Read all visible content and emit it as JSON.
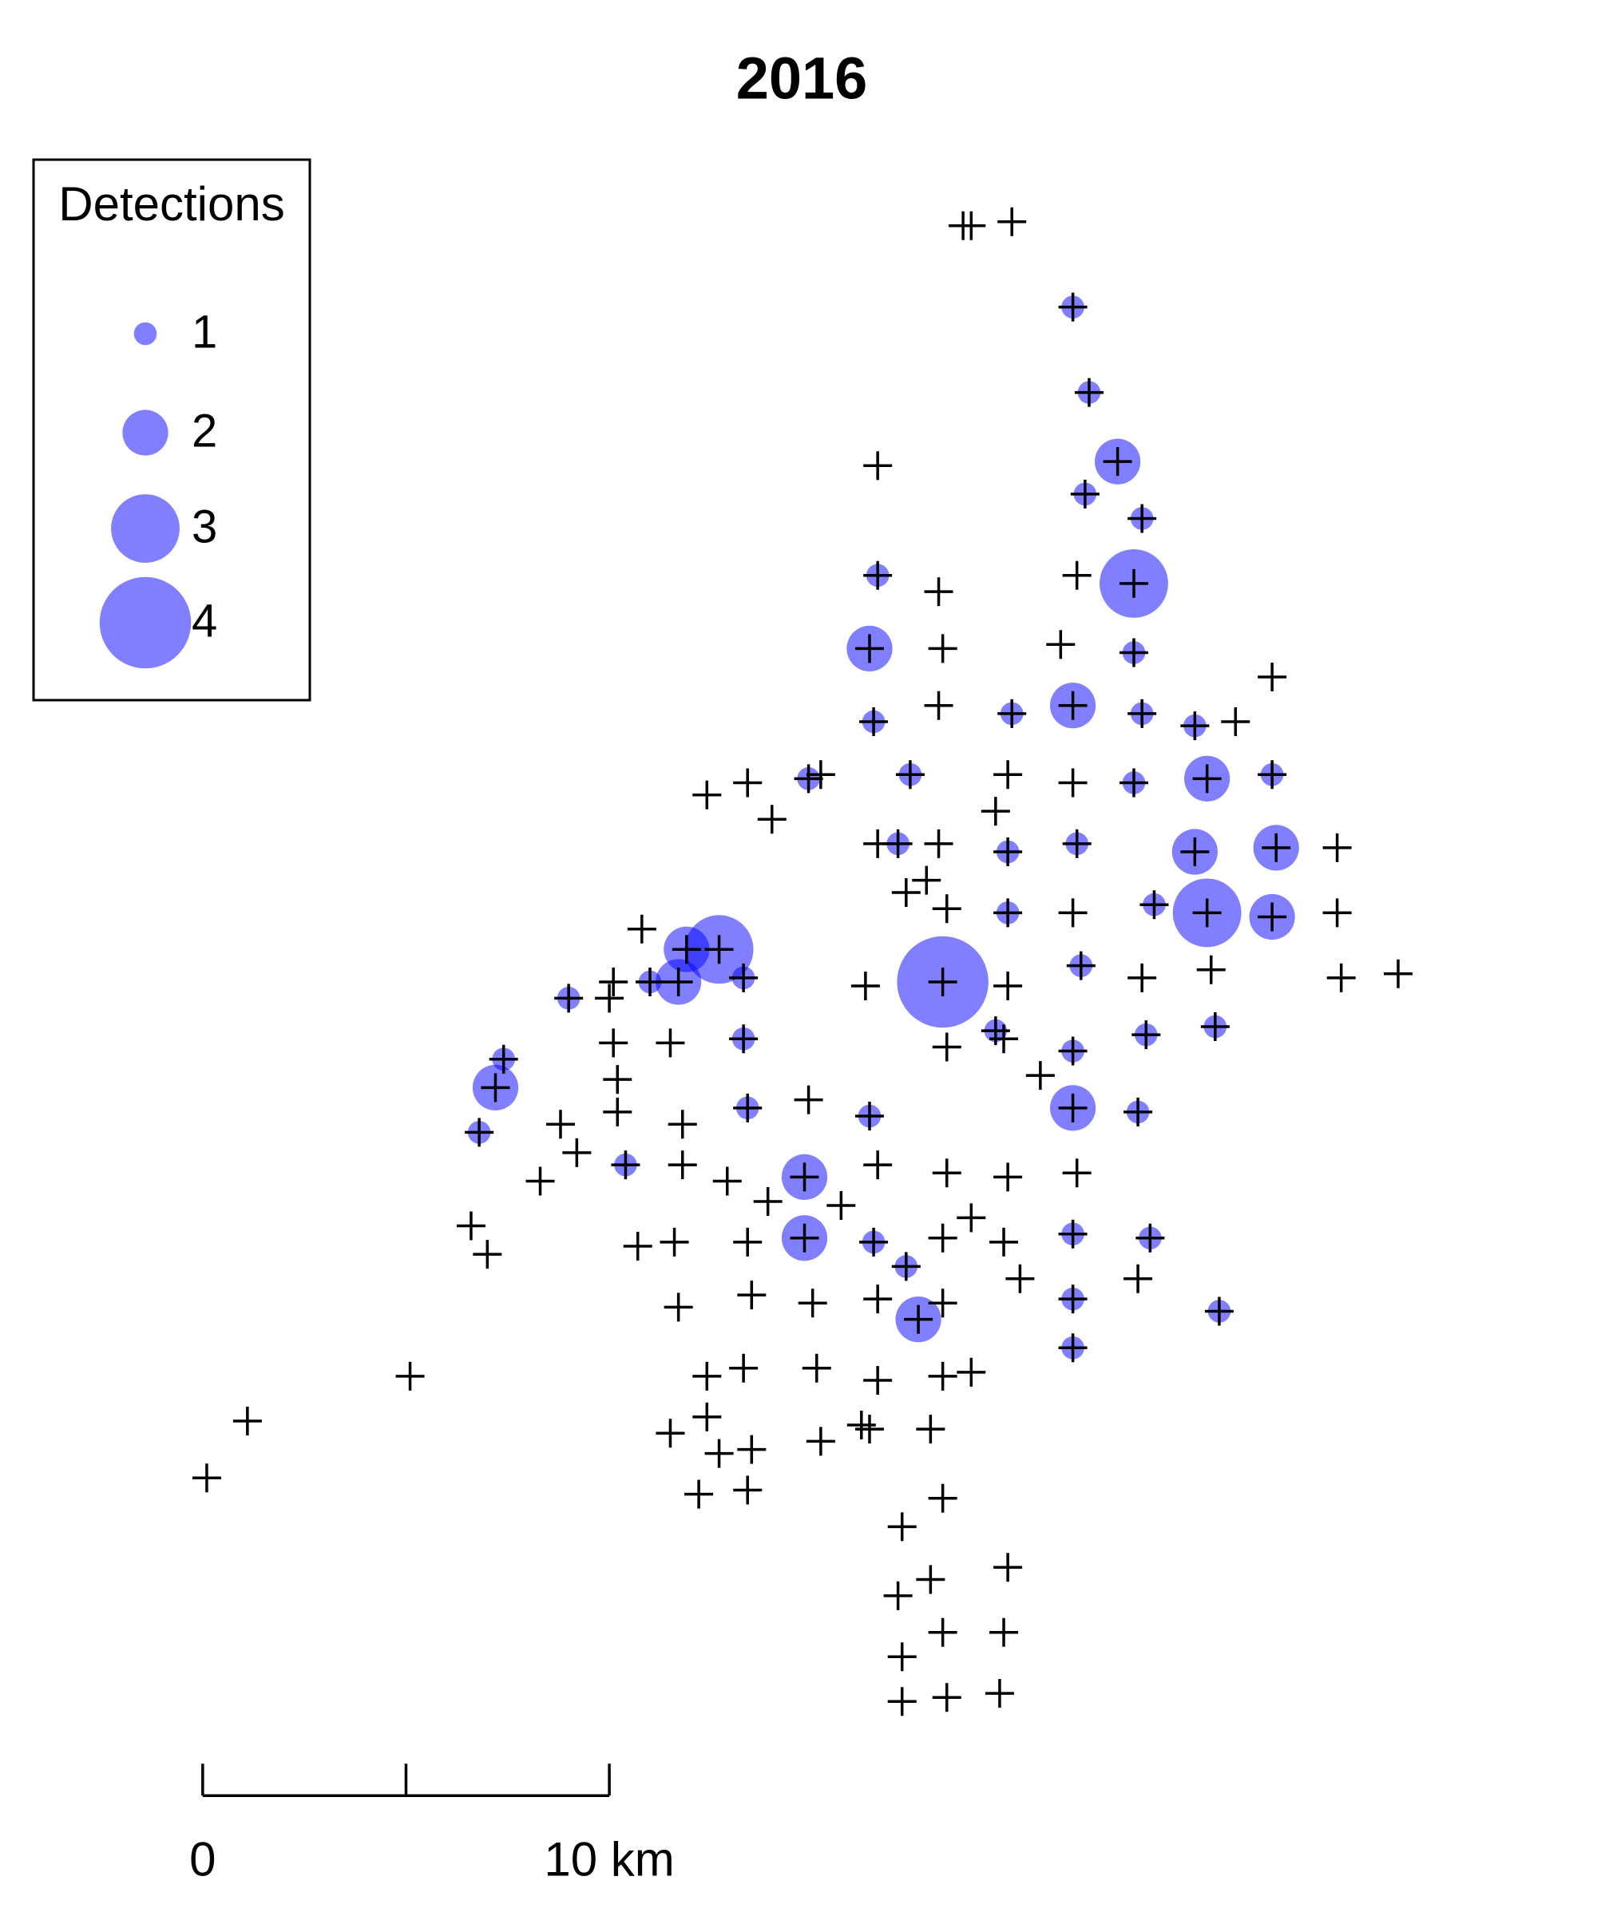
{
  "chart_data": {
    "type": "bubble",
    "title": "2016",
    "x": [
      18.9,
      18.7,
      19.9,
      21.4,
      21.8,
      16.6,
      22.5,
      21.7,
      23.1,
      16.6,
      21.5,
      22.9,
      18.1,
      16.4,
      18.2,
      21.1,
      22.9,
      26.3,
      18.1,
      19.9,
      21.4,
      23.1,
      24.4,
      25.4,
      16.5,
      14.9,
      15.2,
      12.4,
      13.4,
      14.0,
      17.4,
      19.8,
      21.4,
      22.9,
      24.7,
      26.3,
      19.5,
      16.6,
      17.1,
      18.1,
      19.8,
      21.5,
      24.4,
      26.4,
      27.9,
      17.3,
      17.8,
      18.3,
      19.8,
      21.4,
      23.4,
      24.7,
      26.3,
      27.9,
      10.8,
      11.9,
      12.7,
      11.0,
      11.7,
      10.1,
      13.3,
      9.0,
      10.0,
      16.3,
      18.2,
      19.8,
      21.6,
      23.1,
      24.8,
      28.0,
      29.4,
      19.5,
      19.7,
      18.3,
      23.2,
      24.9,
      21.4,
      10.1,
      11.5,
      13.3,
      7.4,
      7.2,
      20.6,
      10.2,
      21.4,
      23.0,
      13.4,
      14.9,
      10.2,
      16.4,
      11.8,
      8.8,
      6.8,
      9.2,
      10.4,
      11.8,
      16.6,
      18.3,
      19.8,
      21.5,
      14.8,
      8.3,
      12.9,
      13.9,
      15.7,
      6.6,
      18.9,
      14.8,
      16.5,
      18.2,
      19.7,
      21.4,
      23.3,
      10.7,
      11.6,
      13.4,
      7.0,
      17.3,
      20.1,
      23.0,
      11.7,
      13.5,
      15.0,
      16.6,
      17.6,
      18.2,
      21.4,
      25.0,
      21.4,
      5.1,
      12.4,
      13.3,
      15.1,
      16.6,
      18.2,
      18.9,
      1.1,
      12.4,
      11.5,
      13.5,
      12.7,
      15.2,
      16.2,
      16.4,
      17.9,
      0.1,
      12.2,
      13.4,
      18.2,
      17.2,
      17.9,
      19.8,
      17.1,
      18.2,
      19.7,
      17.2,
      17.2,
      18.3,
      19.6
    ],
    "y": [
      37.8,
      37.8,
      37.9,
      35.8,
      33.7,
      31.9,
      32.0,
      31.2,
      30.6,
      29.2,
      29.2,
      29.0,
      28.8,
      27.4,
      27.4,
      27.5,
      27.3,
      26.7,
      26.0,
      25.8,
      26.0,
      25.8,
      25.5,
      25.6,
      25.6,
      24.2,
      24.3,
      23.8,
      24.1,
      23.2,
      24.3,
      24.3,
      24.1,
      24.1,
      24.2,
      24.3,
      23.4,
      22.6,
      22.6,
      22.6,
      22.4,
      22.6,
      22.4,
      22.5,
      22.5,
      21.4,
      21.7,
      21.0,
      20.9,
      20.9,
      21.1,
      20.9,
      20.8,
      20.9,
      20.5,
      20.0,
      20.0,
      19.2,
      19.2,
      19.2,
      19.3,
      18.8,
      18.8,
      19.1,
      19.2,
      19.1,
      19.6,
      19.3,
      19.5,
      19.3,
      19.4,
      18.0,
      17.8,
      17.6,
      17.9,
      18.1,
      17.5,
      17.7,
      17.7,
      17.8,
      17.3,
      16.6,
      16.9,
      16.8,
      16.1,
      16.0,
      16.1,
      16.3,
      16.0,
      15.9,
      15.7,
      15.7,
      15.5,
      15.0,
      14.7,
      14.7,
      14.7,
      14.5,
      14.4,
      14.5,
      14.4,
      14.3,
      14.3,
      13.8,
      13.7,
      13.2,
      13.4,
      12.9,
      12.8,
      12.9,
      12.8,
      13.0,
      12.9,
      12.7,
      12.8,
      12.8,
      12.5,
      12.2,
      11.9,
      11.9,
      11.2,
      11.5,
      11.3,
      11.4,
      10.9,
      11.3,
      11.4,
      11.1,
      10.2,
      9.5,
      9.5,
      9.7,
      9.7,
      9.4,
      9.5,
      9.6,
      8.4,
      8.5,
      8.1,
      7.7,
      7.6,
      7.9,
      8.3,
      8.2,
      8.2,
      7.0,
      6.6,
      6.7,
      6.5,
      5.8,
      4.5,
      4.8,
      4.1,
      3.2,
      3.2,
      2.6,
      1.5,
      1.6,
      1.7
    ],
    "detections": [
      0,
      0,
      0,
      1,
      1,
      0,
      2,
      1,
      1,
      1,
      0,
      3,
      0,
      2,
      0,
      0,
      1,
      0,
      0,
      1,
      2,
      1,
      1,
      0,
      1,
      1,
      0,
      0,
      0,
      0,
      1,
      0,
      0,
      1,
      2,
      1,
      0,
      0,
      1,
      0,
      1,
      1,
      2,
      2,
      0,
      0,
      0,
      0,
      1,
      0,
      1,
      3,
      2,
      0,
      0,
      2,
      3,
      1,
      2,
      0,
      1,
      1,
      0,
      0,
      4,
      0,
      1,
      0,
      0,
      0,
      0,
      1,
      0,
      0,
      1,
      1,
      1,
      0,
      0,
      1,
      1,
      2,
      0,
      0,
      2,
      1,
      1,
      0,
      0,
      1,
      0,
      0,
      1,
      0,
      1,
      0,
      0,
      0,
      0,
      0,
      2,
      0,
      0,
      0,
      0,
      0,
      0,
      2,
      1,
      0,
      0,
      1,
      1,
      0,
      0,
      0,
      0,
      1,
      0,
      0,
      0,
      0,
      0,
      0,
      2,
      0,
      1,
      1,
      1,
      0,
      0,
      0,
      0,
      0,
      0,
      0,
      0,
      0,
      0,
      0,
      0,
      0,
      0,
      0,
      0,
      0,
      0,
      0,
      0,
      0,
      0,
      0,
      0,
      0,
      0,
      0,
      0,
      0,
      0
    ],
    "bubble_color": "#0000ff",
    "station_color": "#000000",
    "legend": {
      "title": "Detections",
      "sizes": [
        1,
        2,
        3,
        4
      ],
      "position": "topleft"
    },
    "xticks": [
      0,
      {
        "value": 5,
        "label": null
      },
      {
        "value": 10,
        "label": "10 km"
      }
    ]
  }
}
